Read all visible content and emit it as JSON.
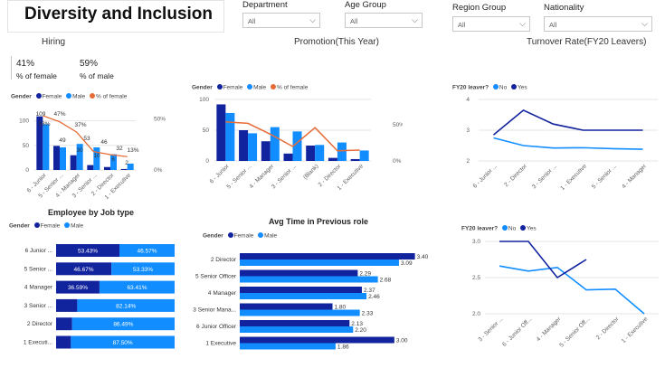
{
  "header": {
    "title": "Diversity and Inclusion"
  },
  "filters": [
    {
      "label": "Department",
      "value": "All"
    },
    {
      "label": "Age Group",
      "value": "All"
    },
    {
      "label": "Region Group",
      "value": "All"
    },
    {
      "label": "Nationality",
      "value": "All"
    }
  ],
  "sections": {
    "hiring": "Hiring",
    "promotion": "Promotion(This Year)",
    "turnover": "Turnover Rate(FY20 Leavers)",
    "employee_by_job": "Employee by Job type",
    "avg_time": "Avg Time in Previous role"
  },
  "kpis": [
    {
      "value": "41%",
      "label": "% of female"
    },
    {
      "value": "59%",
      "label": "% of male"
    }
  ],
  "legends": {
    "gender_label": "Gender",
    "female": "Female",
    "male": "Male",
    "pct_female": "% of female",
    "fy20_label": "FY20 leaver?",
    "no": "No",
    "yes": "Yes"
  },
  "colors": {
    "female": "#12239e",
    "male": "#118dff",
    "pct": "#e66c37",
    "grid": "#e6e6e6"
  },
  "chart_data": [
    {
      "id": "hiring",
      "type": "bar",
      "categories": [
        "6 - Junior",
        "5 - Senior ...",
        "4 - Manager",
        "3 - Senior ...",
        "2 - Director",
        "1 - Executive"
      ],
      "series": [
        {
          "name": "Female",
          "values": [
            109,
            49,
            30,
            10,
            6,
            2
          ]
        },
        {
          "name": "Male",
          "values": [
            93,
            46,
            53,
            46,
            32,
            13
          ]
        },
        {
          "name": "% of female",
          "values": [
            0.53,
            0.47,
            0.37,
            0.18,
            0.15,
            0.13
          ]
        }
      ],
      "data_labels": [
        "109",
        "53%",
        "47%",
        "49",
        "37%",
        "30",
        "53",
        "10",
        "46",
        "6",
        "32",
        "2",
        "13%"
      ],
      "y_ticks": [
        "0",
        "50",
        "100"
      ],
      "y2_ticks": [
        "0%",
        "50%"
      ],
      "ylim": [
        0,
        125
      ]
    },
    {
      "id": "promotion",
      "type": "bar",
      "categories": [
        "6 - Junior",
        "5 - Senior ...",
        "4 - Manager",
        "3 - Senior ...",
        "(Blank)",
        "2 - Director",
        "1 - Executive"
      ],
      "series": [
        {
          "name": "Female",
          "values": [
            92,
            50,
            32,
            12,
            25,
            5,
            3
          ]
        },
        {
          "name": "Male",
          "values": [
            78,
            45,
            55,
            48,
            26,
            30,
            17
          ]
        },
        {
          "name": "% of female",
          "values": [
            0.54,
            0.52,
            0.37,
            0.2,
            0.46,
            0.14,
            0.15
          ]
        }
      ],
      "y_ticks": [
        "0",
        "50",
        "100"
      ],
      "y2_ticks": [
        "0%",
        "50%"
      ],
      "ylim": [
        0,
        100
      ]
    },
    {
      "id": "turnover-1",
      "type": "line",
      "categories": [
        "6 - Junior ...",
        "2 - Director",
        "3 - Senior ...",
        "1 - Executive",
        "5 - Senior ...",
        "4 - Manager"
      ],
      "series": [
        {
          "name": "No",
          "values": [
            2.75,
            2.5,
            2.42,
            2.43,
            2.4,
            2.38
          ]
        },
        {
          "name": "Yes",
          "values": [
            2.85,
            3.65,
            3.2,
            3.0,
            3.0,
            3.0
          ]
        }
      ],
      "y_ticks": [
        "2",
        "3",
        "4"
      ],
      "ylim": [
        2,
        4
      ]
    },
    {
      "id": "turnover-2",
      "type": "line",
      "categories": [
        "3 - Senior ...",
        "6 - Junior Off...",
        "4 - Manager",
        "5 - Senior Off...",
        "2 - Director",
        "1 - Executive"
      ],
      "series": [
        {
          "name": "No",
          "values": [
            2.66,
            2.59,
            2.64,
            2.33,
            2.34,
            2.0
          ]
        },
        {
          "name": "Yes",
          "values": [
            3.0,
            3.0,
            2.5,
            2.75,
            null,
            null
          ]
        }
      ],
      "y_ticks": [
        "2.0",
        "2.5",
        "3.0"
      ],
      "ylim": [
        2.0,
        3.0
      ]
    },
    {
      "id": "employee-by-job",
      "type": "bar",
      "categories": [
        "6 Junior ...",
        "5 Senior ...",
        "4 Manager",
        "3 Senior ...",
        "2 Director",
        "1 Executi..."
      ],
      "series": [
        {
          "name": "Female",
          "values": [
            53.43,
            46.67,
            36.59,
            17.86,
            13.51,
            12.5
          ]
        },
        {
          "name": "Male",
          "values": [
            46.57,
            53.33,
            63.41,
            82.14,
            86.49,
            87.5
          ]
        }
      ],
      "labels": {
        "female": [
          "53.43%",
          "46.67%",
          "36.59%",
          "",
          "",
          ""
        ],
        "male": [
          "46.57%",
          "53.33%",
          "63.41%",
          "82.14%",
          "86.49%",
          "87.50%"
        ]
      }
    },
    {
      "id": "avg-time",
      "type": "bar",
      "categories": [
        "2  Director",
        "5  Senior Officer",
        "4  Manager",
        "3  Senior Mana...",
        "6  Junior Officer",
        "1  Executive"
      ],
      "series": [
        {
          "name": "Female",
          "values": [
            3.4,
            2.29,
            2.37,
            1.8,
            2.13,
            3.0
          ]
        },
        {
          "name": "Male",
          "values": [
            3.09,
            2.68,
            2.46,
            2.33,
            2.2,
            1.86
          ]
        }
      ],
      "labels": {
        "female": [
          "3.40",
          "2.29",
          "2.37",
          "1.80",
          "2.13",
          "3.00"
        ],
        "male": [
          "3.09",
          "2.68",
          "2.46",
          "2.33",
          "2.20",
          "1.86"
        ]
      },
      "xlim": [
        0,
        3.6
      ]
    }
  ]
}
